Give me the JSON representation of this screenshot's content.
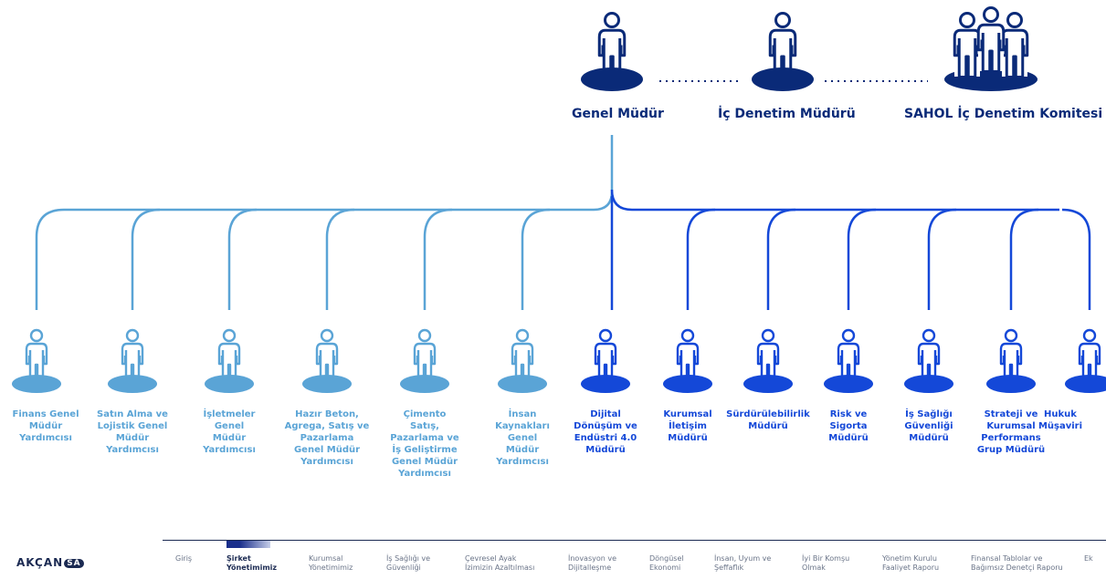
{
  "top": {
    "nodes": [
      {
        "label": "Genel Müdür",
        "icon": "person-icon"
      },
      {
        "label": "İç Denetim Müdürü",
        "icon": "person-icon"
      },
      {
        "label": "SAHOL İç Denetim Komitesi",
        "icon": "group-icon"
      }
    ]
  },
  "units": [
    {
      "label": "Finans Genel\nMüdür\nYardımcısı",
      "group": "light"
    },
    {
      "label": "Satın Alma ve\nLojistik Genel\nMüdür\nYardımcısı",
      "group": "light"
    },
    {
      "label": "İşletmeler\nGenel\nMüdür\nYardımcısı",
      "group": "light"
    },
    {
      "label": "Hazır Beton,\nAgrega, Satış ve\nPazarlama\nGenel Müdür\nYardımcısı",
      "group": "light"
    },
    {
      "label": "Çimento\nSatış,\nPazarlama ve\nİş Geliştirme\nGenel Müdür\nYardımcısı",
      "group": "light"
    },
    {
      "label": "İnsan\nKaynakları\nGenel\nMüdür\nYardımcısı",
      "group": "light"
    },
    {
      "label": "Dijital\nDönüşüm ve\nEndüstri 4.0\nMüdürü",
      "group": "dark"
    },
    {
      "label": "Kurumsal\nİletişim\nMüdürü",
      "group": "dark"
    },
    {
      "label": "Sürdürülebilirlik\nMüdürü",
      "group": "dark"
    },
    {
      "label": "Risk ve\nSigorta\nMüdürü",
      "group": "dark"
    },
    {
      "label": "İş Sağlığı\nGüvenliği\nMüdürü",
      "group": "dark"
    },
    {
      "label": "Strateji ve\nKurumsal\nPerformans\nGrup Müdürü",
      "group": "dark"
    },
    {
      "label": "Hukuk\nMüşaviri",
      "group": "dark"
    }
  ],
  "colors": {
    "light": "#5aa4d6",
    "dark": "#1448d8",
    "navy": "#0a2a78"
  },
  "footer": {
    "logo_text": "AKÇAN",
    "logo_badge": "SA",
    "nav": [
      {
        "label": "Giriş",
        "active": false
      },
      {
        "label": "Şirket\nYönetimimiz",
        "active": true
      },
      {
        "label": "Kurumsal\nYönetimimiz",
        "active": false
      },
      {
        "label": "İş Sağlığı ve\nGüvenliği",
        "active": false
      },
      {
        "label": "Çevresel Ayak\nİzimizin Azaltılması",
        "active": false
      },
      {
        "label": "İnovasyon ve\nDijitalleşme",
        "active": false
      },
      {
        "label": "Döngüsel\nEkonomi",
        "active": false
      },
      {
        "label": "İnsan, Uyum ve\nŞeffaflık",
        "active": false
      },
      {
        "label": "İyi Bir Komşu\nOlmak",
        "active": false
      },
      {
        "label": "Yönetim Kurulu\nFaaliyet Raporu",
        "active": false
      },
      {
        "label": "Finansal Tablolar ve\nBağımsız Denetçi Raporu",
        "active": false
      },
      {
        "label": "Ek",
        "active": false
      }
    ]
  }
}
